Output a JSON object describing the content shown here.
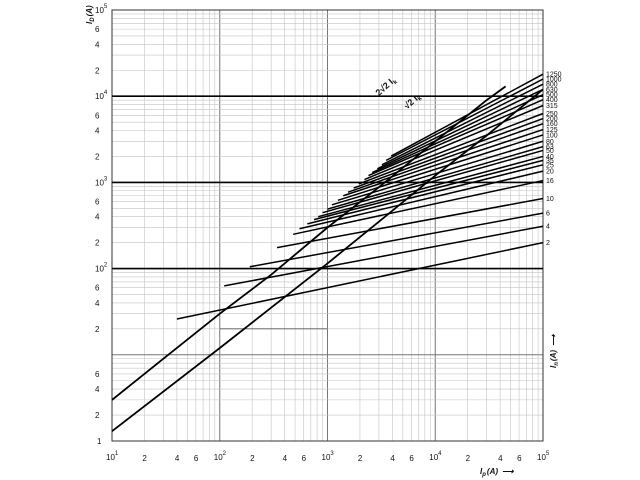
{
  "chart_data": {
    "type": "line",
    "title": "",
    "x_scale": "log",
    "y_scale": "log",
    "xlim": [
      10,
      100000
    ],
    "ylim": [
      1,
      100000
    ],
    "grid": true,
    "x_axis": {
      "label_main": "I",
      "label_sub": "p",
      "label_unit": "(A)",
      "label_suffix": "⟶",
      "decade_ticks": [
        {
          "base": "10",
          "exp": "1",
          "value": 10
        },
        {
          "base": "10",
          "exp": "2",
          "value": 100
        },
        {
          "base": "10",
          "exp": "3",
          "value": 1000
        },
        {
          "base": "10",
          "exp": "4",
          "value": 10000
        },
        {
          "base": "10",
          "exp": "5",
          "value": 100000
        }
      ],
      "minor_ticks": [
        {
          "text": "2",
          "value": 20
        },
        {
          "text": "4",
          "value": 40
        },
        {
          "text": "6",
          "value": 60
        },
        {
          "text": "2",
          "value": 200
        },
        {
          "text": "4",
          "value": 400
        },
        {
          "text": "6",
          "value": 600
        },
        {
          "text": "2",
          "value": 2000
        },
        {
          "text": "4",
          "value": 4000
        },
        {
          "text": "6",
          "value": 6000
        },
        {
          "text": "2",
          "value": 20000
        },
        {
          "text": "4",
          "value": 40000
        },
        {
          "text": "6",
          "value": 60000
        }
      ]
    },
    "y_axis": {
      "label_main": "I",
      "label_sub": "D",
      "label_unit": "(A)",
      "decade_ticks": [
        {
          "base": "1",
          "exp": "",
          "value": 1
        },
        {
          "base": "10",
          "exp": "2",
          "value": 100
        },
        {
          "base": "10",
          "exp": "3",
          "value": 1000
        },
        {
          "base": "10",
          "exp": "4",
          "value": 10000
        },
        {
          "base": "10",
          "exp": "5",
          "value": 100000
        }
      ],
      "minor_ticks": [
        {
          "text": "2",
          "value": 2
        },
        {
          "text": "4",
          "value": 4
        },
        {
          "text": "6",
          "value": 6
        },
        {
          "text": "2",
          "value": 20
        },
        {
          "text": "4",
          "value": 40
        },
        {
          "text": "6",
          "value": 60
        },
        {
          "text": "2",
          "value": 200
        },
        {
          "text": "4",
          "value": 400
        },
        {
          "text": "6",
          "value": 600
        },
        {
          "text": "2",
          "value": 2000
        },
        {
          "text": "4",
          "value": 4000
        },
        {
          "text": "6",
          "value": 6000
        },
        {
          "text": "2",
          "value": 20000
        },
        {
          "text": "4",
          "value": 40000
        },
        {
          "text": "6",
          "value": 60000
        }
      ]
    },
    "right_axis": {
      "label_main": "I",
      "label_sub": "n",
      "label_unit": "(A)",
      "label_arrow": "⟶"
    },
    "reference_lines": {
      "horizontal_values": [
        100,
        1000,
        10000
      ],
      "vertical_short": {
        "x": [
          100,
          1000
        ],
        "y": 20
      }
    },
    "envelope_curves": [
      {
        "label": "2√2 I",
        "label_sub": "k",
        "points": [
          [
            10,
            3
          ],
          [
            30,
            9
          ],
          [
            100,
            30
          ],
          [
            300,
            85
          ],
          [
            1000,
            300
          ],
          [
            3000,
            880
          ],
          [
            10000,
            3000
          ],
          [
            30000,
            9000
          ],
          [
            45000,
            13000
          ]
        ]
      },
      {
        "label": "√2 I",
        "label_sub": "k",
        "points": [
          [
            10,
            1.3
          ],
          [
            100,
            12
          ],
          [
            1000,
            115
          ],
          [
            3000,
            350
          ],
          [
            10000,
            1200
          ],
          [
            30000,
            3500
          ],
          [
            100000,
            12000
          ]
        ]
      }
    ],
    "series": [
      {
        "name": "1250",
        "points": [
          [
            3900,
            2020
          ],
          [
            100000,
            18000
          ]
        ]
      },
      {
        "name": "1000",
        "points": [
          [
            3500,
            1800
          ],
          [
            100000,
            15800
          ]
        ]
      },
      {
        "name": "800",
        "points": [
          [
            3200,
            1600
          ],
          [
            100000,
            13800
          ]
        ]
      },
      {
        "name": "630",
        "points": [
          [
            2900,
            1440
          ],
          [
            100000,
            12000
          ]
        ]
      },
      {
        "name": "500",
        "points": [
          [
            2600,
            1300
          ],
          [
            100000,
            10400
          ]
        ]
      },
      {
        "name": "400",
        "points": [
          [
            2400,
            1200
          ],
          [
            100000,
            9100
          ]
        ]
      },
      {
        "name": "315",
        "points": [
          [
            2200,
            1080
          ],
          [
            100000,
            7800
          ]
        ]
      },
      {
        "name": "250",
        "points": [
          [
            1950,
            960
          ],
          [
            100000,
            6300
          ]
        ]
      },
      {
        "name": "200",
        "points": [
          [
            1750,
            860
          ],
          [
            100000,
            5500
          ]
        ]
      },
      {
        "name": "160",
        "points": [
          [
            1550,
            770
          ],
          [
            100000,
            4800
          ]
        ]
      },
      {
        "name": "125",
        "points": [
          [
            1400,
            700
          ],
          [
            100000,
            4100
          ]
        ]
      },
      {
        "name": "100",
        "points": [
          [
            1250,
            620
          ],
          [
            100000,
            3550
          ]
        ]
      },
      {
        "name": "80",
        "points": [
          [
            1100,
            550
          ],
          [
            100000,
            3000
          ]
        ]
      },
      {
        "name": "63",
        "points": [
          [
            1000,
            490
          ],
          [
            100000,
            2600
          ]
        ]
      },
      {
        "name": "50",
        "points": [
          [
            900,
            445
          ],
          [
            100000,
            2350
          ]
        ]
      },
      {
        "name": "40",
        "points": [
          [
            820,
            400
          ],
          [
            100000,
            2000
          ]
        ]
      },
      {
        "name": "35",
        "points": [
          [
            750,
            370
          ],
          [
            100000,
            1800
          ]
        ]
      },
      {
        "name": "25",
        "points": [
          [
            650,
            330
          ],
          [
            100000,
            1600
          ]
        ]
      },
      {
        "name": "20",
        "points": [
          [
            550,
            290
          ],
          [
            100000,
            1350
          ]
        ]
      },
      {
        "name": "16",
        "points": [
          [
            480,
            250
          ],
          [
            100000,
            1050
          ]
        ]
      },
      {
        "name": "10",
        "points": [
          [
            340,
            175
          ],
          [
            100000,
            650
          ]
        ]
      },
      {
        "name": "6",
        "points": [
          [
            190,
            105
          ],
          [
            100000,
            440
          ]
        ]
      },
      {
        "name": "4",
        "points": [
          [
            110,
            63
          ],
          [
            100000,
            310
          ]
        ]
      },
      {
        "name": "2",
        "points": [
          [
            40,
            26
          ],
          [
            100000,
            200
          ]
        ]
      }
    ]
  }
}
